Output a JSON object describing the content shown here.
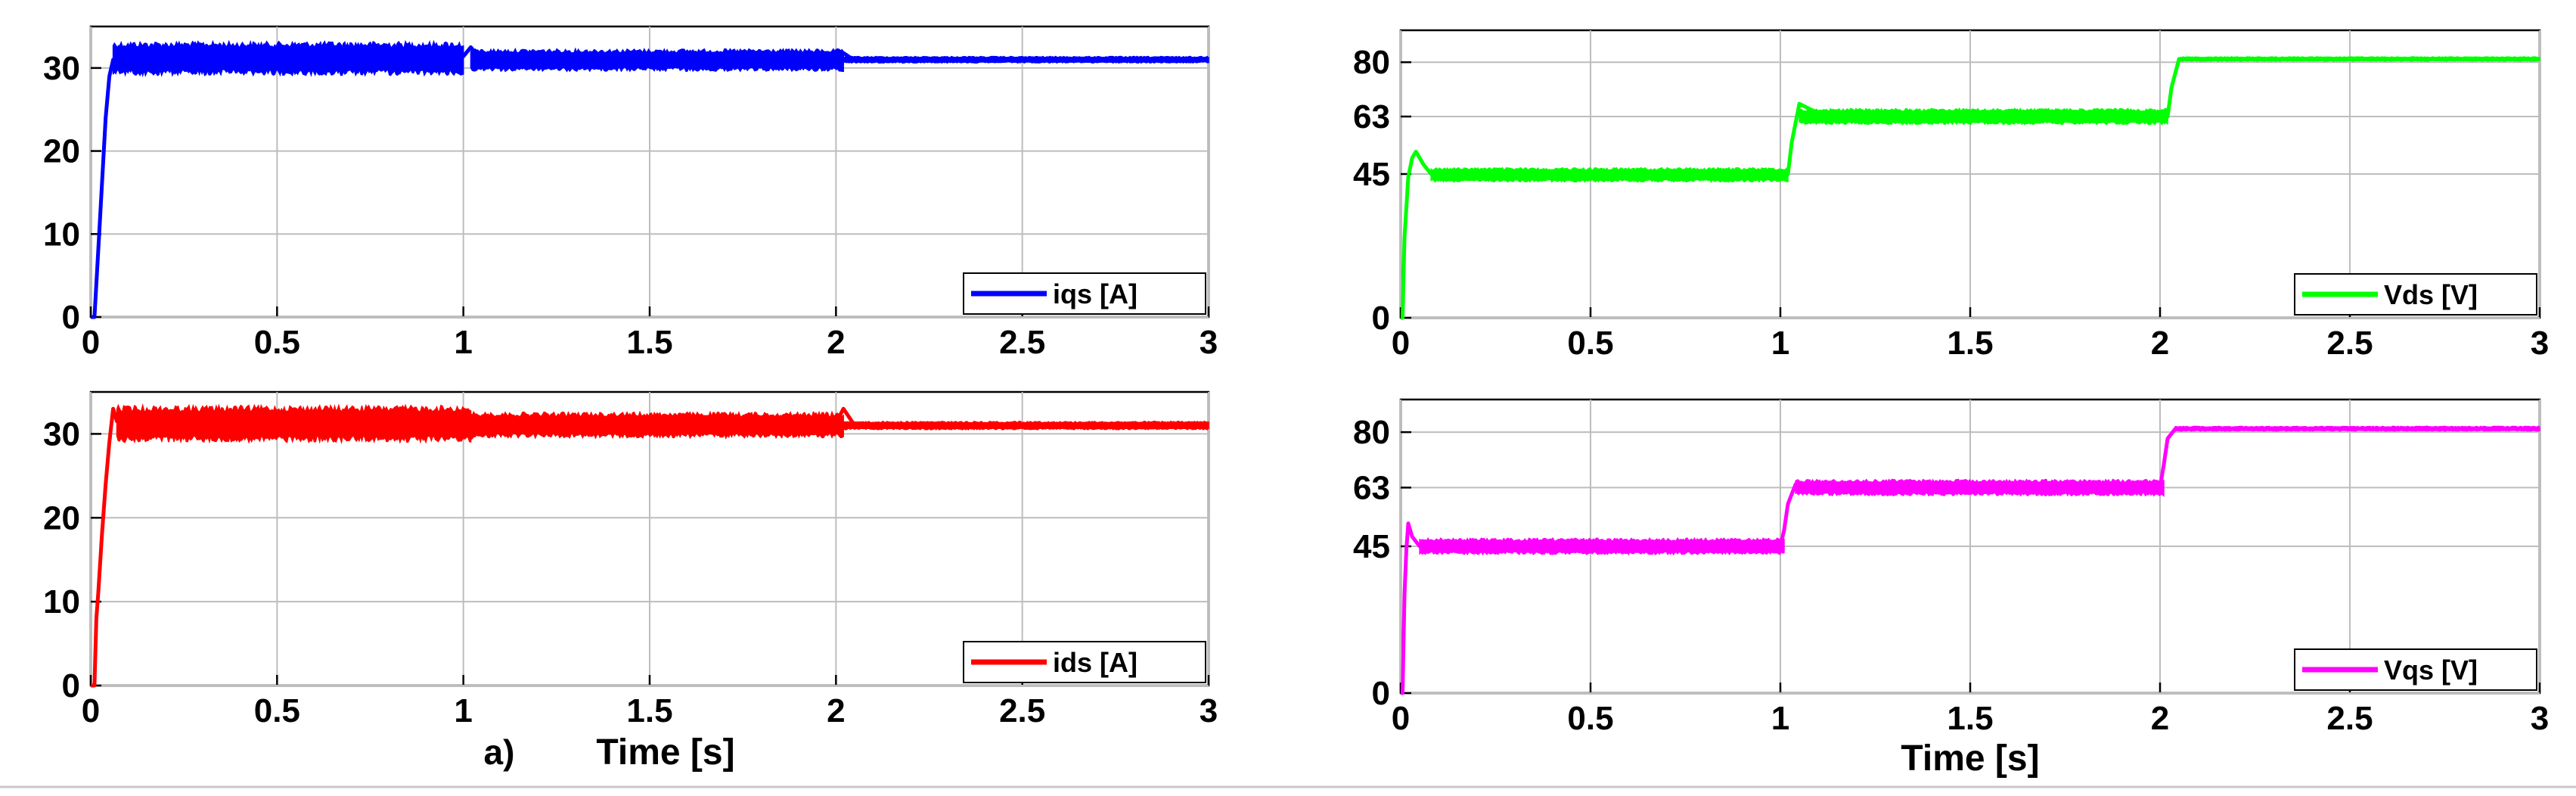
{
  "chart_data": [
    {
      "type": "line",
      "legend_location": "bottom-right",
      "grid": true,
      "xlim": [
        0,
        3
      ],
      "ylim": [
        0,
        35
      ],
      "xticks": [
        0,
        0.5,
        1,
        1.5,
        2,
        2.5,
        3
      ],
      "yticks": [
        0,
        10,
        20,
        30
      ],
      "xtick_labels": [
        "0",
        "0.5",
        "1",
        "1.5",
        "2",
        "2.5",
        "3"
      ],
      "ytick_labels": [
        "0",
        "10",
        "20",
        "30"
      ],
      "xlabel": "",
      "ylabel": "",
      "series": [
        {
          "name": "iqs [A]",
          "color": "#0000ff",
          "x": [
            0,
            0.01,
            0.02,
            0.03,
            0.04,
            0.05,
            0.06,
            0.08,
            0.1,
            0.2,
            0.3,
            0.5,
            0.7,
            0.9,
            1.0,
            1.02,
            1.05,
            1.1,
            1.3,
            1.5,
            1.7,
            1.9,
            2.0,
            2.02,
            2.05,
            2.2,
            2.5,
            2.8,
            3.0
          ],
          "values": [
            0,
            0,
            8,
            16,
            24,
            29,
            31,
            31.5,
            31.5,
            31.3,
            31.3,
            31.3,
            31.3,
            31.3,
            31.4,
            32.5,
            30.8,
            30.9,
            30.9,
            30.9,
            30.9,
            30.9,
            31.2,
            31.8,
            30.9,
            30.9,
            31.1,
            31.0,
            31.0
          ],
          "ripple_band": [
            [
              0.06,
              1.0,
              33.2,
              29.1
            ],
            [
              1.02,
              2.02,
              32.3,
              29.6
            ],
            [
              2.02,
              3.0,
              31.4,
              30.6
            ]
          ]
        }
      ]
    },
    {
      "type": "line",
      "legend_location": "bottom-right",
      "grid": true,
      "xlim": [
        0,
        3
      ],
      "ylim": [
        0,
        35
      ],
      "xticks": [
        0,
        0.5,
        1,
        1.5,
        2,
        2.5,
        3
      ],
      "yticks": [
        0,
        10,
        20,
        30
      ],
      "xtick_labels": [
        "0",
        "0.5",
        "1",
        "1.5",
        "2",
        "2.5",
        "3"
      ],
      "ytick_labels": [
        "0",
        "10",
        "20",
        "30"
      ],
      "xlabel": "Time [s]",
      "ylabel": "",
      "panel_label": "a)",
      "series": [
        {
          "name": "ids [A]",
          "color": "#ff0000",
          "x": [
            0,
            0.01,
            0.015,
            0.02,
            0.03,
            0.04,
            0.05,
            0.06,
            0.07,
            0.1,
            0.3,
            0.5,
            0.7,
            0.9,
            1.0,
            1.02,
            1.05,
            1.3,
            1.5,
            1.7,
            1.9,
            2.0,
            2.02,
            2.05,
            2.3,
            2.6,
            3.0
          ],
          "values": [
            0,
            0,
            8,
            11,
            18,
            24,
            29,
            33,
            31.5,
            31.2,
            31.2,
            31.2,
            31.2,
            31.2,
            31.4,
            29.5,
            31.0,
            31.0,
            31.0,
            31.0,
            31.0,
            31.3,
            33.0,
            31.0,
            31.0,
            31.0,
            31.0
          ],
          "ripple_band": [
            [
              0.07,
              1.02,
              33.4,
              29.0
            ],
            [
              1.02,
              2.02,
              32.6,
              29.5
            ],
            [
              2.02,
              3.0,
              31.5,
              30.5
            ]
          ]
        }
      ]
    },
    {
      "type": "line",
      "legend_location": "bottom-right",
      "grid": true,
      "xlim": [
        0,
        3
      ],
      "ylim": [
        0,
        90
      ],
      "xticks": [
        0,
        0.5,
        1,
        1.5,
        2,
        2.5,
        3
      ],
      "yticks": [
        0,
        45,
        63,
        80
      ],
      "xtick_labels": [
        "0",
        "0.5",
        "1",
        "1.5",
        "2",
        "2.5",
        "3"
      ],
      "ytick_labels": [
        "0",
        "45",
        "63",
        "80"
      ],
      "xlabel": "",
      "ylabel": "",
      "series": [
        {
          "name": "Vds [V]",
          "color": "#00ff00",
          "x": [
            0,
            0.005,
            0.01,
            0.02,
            0.03,
            0.04,
            0.06,
            0.08,
            0.1,
            0.2,
            0.5,
            0.8,
            1.0,
            1.02,
            1.03,
            1.05,
            1.1,
            1.5,
            1.9,
            2.0,
            2.02,
            2.03,
            2.05,
            2.3,
            2.6,
            3.0
          ],
          "values": [
            0,
            0,
            25,
            44,
            50,
            52,
            48,
            45,
            45,
            45,
            45,
            45,
            45,
            45,
            55,
            67,
            64,
            63,
            63,
            63,
            63,
            72,
            81,
            81,
            81,
            81
          ],
          "ripple_band": [
            [
              0.08,
              1.02,
              47,
              42.5
            ],
            [
              1.05,
              2.02,
              65.5,
              60.5
            ],
            [
              2.05,
              3.0,
              81.7,
              80.3
            ]
          ]
        }
      ]
    },
    {
      "type": "line",
      "legend_location": "bottom-right",
      "grid": true,
      "xlim": [
        0,
        3
      ],
      "ylim": [
        0,
        90
      ],
      "xticks": [
        0,
        0.5,
        1,
        1.5,
        2,
        2.5,
        3
      ],
      "yticks": [
        0,
        45,
        63,
        80
      ],
      "xtick_labels": [
        "0",
        "0.5",
        "1",
        "1.5",
        "2",
        "2.5",
        "3"
      ],
      "ytick_labels": [
        "0",
        "45",
        "63",
        "80"
      ],
      "xlabel": "Time [s]",
      "ylabel": "",
      "series": [
        {
          "name": "Vqs [V]",
          "color": "#ff00ff",
          "x": [
            0,
            0.005,
            0.01,
            0.015,
            0.02,
            0.03,
            0.05,
            0.1,
            0.5,
            0.9,
            1.0,
            1.01,
            1.02,
            1.04,
            1.1,
            1.5,
            1.9,
            2.0,
            2.01,
            2.02,
            2.04,
            2.3,
            2.6,
            3.0
          ],
          "values": [
            0,
            0,
            30,
            44,
            52,
            48,
            45,
            45,
            45,
            45,
            45,
            50,
            58,
            64,
            63,
            63,
            63,
            63,
            70,
            78,
            81,
            81,
            81,
            81
          ],
          "ripple_band": [
            [
              0.05,
              1.01,
              47.5,
              42.5
            ],
            [
              1.04,
              2.01,
              65.5,
              60.5
            ],
            [
              2.04,
              3.0,
              81.8,
              80.3
            ]
          ]
        }
      ]
    }
  ]
}
